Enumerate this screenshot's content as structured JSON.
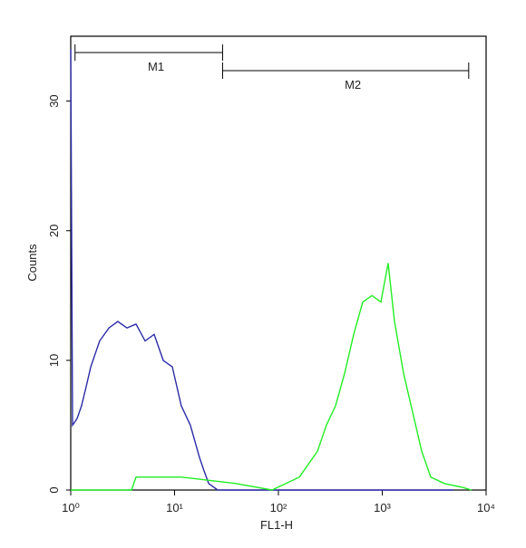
{
  "chart_data": {
    "type": "line",
    "x_label": "FL1-H",
    "y_label": "Counts",
    "log_x": true,
    "xlim": [
      1,
      10000
    ],
    "xticks": [
      {
        "value": 1,
        "label": "10⁰"
      },
      {
        "value": 10,
        "label": "10¹"
      },
      {
        "value": 100,
        "label": "10²"
      },
      {
        "value": 1000,
        "label": "10³"
      },
      {
        "value": 10000,
        "label": "10⁴"
      }
    ],
    "ylim": [
      0,
      35
    ],
    "yticks": [
      0,
      10,
      20,
      30
    ],
    "series": [
      {
        "color": "#2b2ba8",
        "x": [
          1,
          1.04,
          1.15,
          1.27,
          1.41,
          1.56,
          1.72,
          1.9,
          2.33,
          2.84,
          3.48,
          4.25,
          5.2,
          6.36,
          7.78,
          9.51,
          11.6,
          14.2,
          17.4,
          19.2,
          21.3,
          26,
          4850
        ],
        "values": [
          34,
          5,
          5.5,
          6.5,
          8,
          9.5,
          10.5,
          11.5,
          12.5,
          13,
          12.5,
          12.8,
          11.5,
          12,
          10,
          9.5,
          6.5,
          5,
          2.5,
          1.5,
          0.5,
          0,
          0
        ]
      },
      {
        "color": "#22ee22",
        "x": [
          1,
          3.85,
          4.25,
          11.6,
          38.9,
          86.9,
          159,
          238,
          290,
          355,
          434,
          531,
          649,
          794,
          971,
          1140,
          1312,
          1603,
          1963,
          2399,
          2932,
          3963,
          5929,
          7244
        ],
        "values": [
          0,
          0,
          1,
          1,
          0.5,
          0,
          1,
          3,
          5,
          6.5,
          9,
          12,
          14.5,
          15,
          14.5,
          17.5,
          13,
          9,
          6,
          3,
          1,
          0.5,
          0.2,
          0
        ]
      }
    ],
    "markers": [
      {
        "name": "M1",
        "range": [
          1.1,
          29
        ]
      },
      {
        "name": "M2",
        "range": [
          29,
          6800
        ]
      }
    ]
  }
}
